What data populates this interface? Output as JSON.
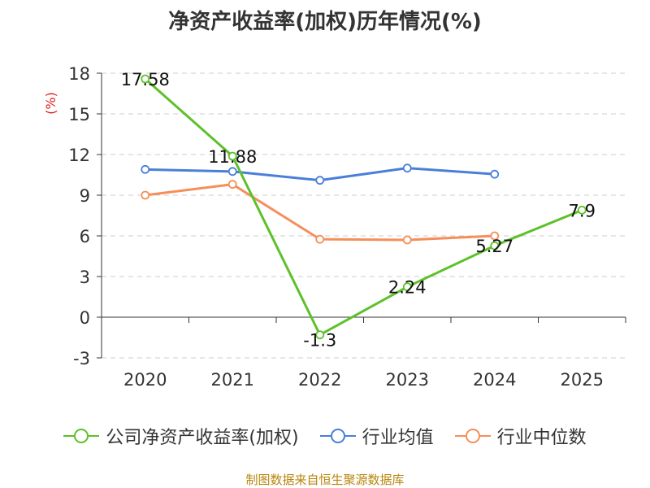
{
  "chart_data": {
    "type": "line",
    "title": "净资产收益率(加权)历年情况(%)",
    "ylabel": "(%)",
    "xlabel": "",
    "categories": [
      "2020",
      "2021",
      "2022",
      "2023",
      "2024",
      "2025"
    ],
    "ylim": [
      -3,
      18
    ],
    "yticks": [
      -3,
      0,
      3,
      6,
      9,
      12,
      15,
      18
    ],
    "ytick_labels": [
      "-3",
      "0",
      "3",
      "6",
      "9",
      "12",
      "15",
      "18"
    ],
    "grid": true,
    "legend_position": "bottom",
    "series": [
      {
        "name": "公司净资产收益率(加权)",
        "color": "#5dc12a",
        "values": [
          17.58,
          11.88,
          -1.3,
          2.24,
          5.27,
          7.9
        ],
        "labels": [
          "17.58",
          "11.88",
          "-1.3",
          "2.24",
          "5.27",
          "7.9"
        ]
      },
      {
        "name": "行业均值",
        "color": "#4a7fd8",
        "values": [
          10.9,
          10.75,
          10.1,
          11.0,
          10.55,
          null
        ]
      },
      {
        "name": "行业中位数",
        "color": "#f58f5a",
        "values": [
          9.0,
          9.8,
          5.75,
          5.7,
          6.0,
          null
        ]
      }
    ],
    "source": "制图数据来自恒生聚源数据库"
  }
}
